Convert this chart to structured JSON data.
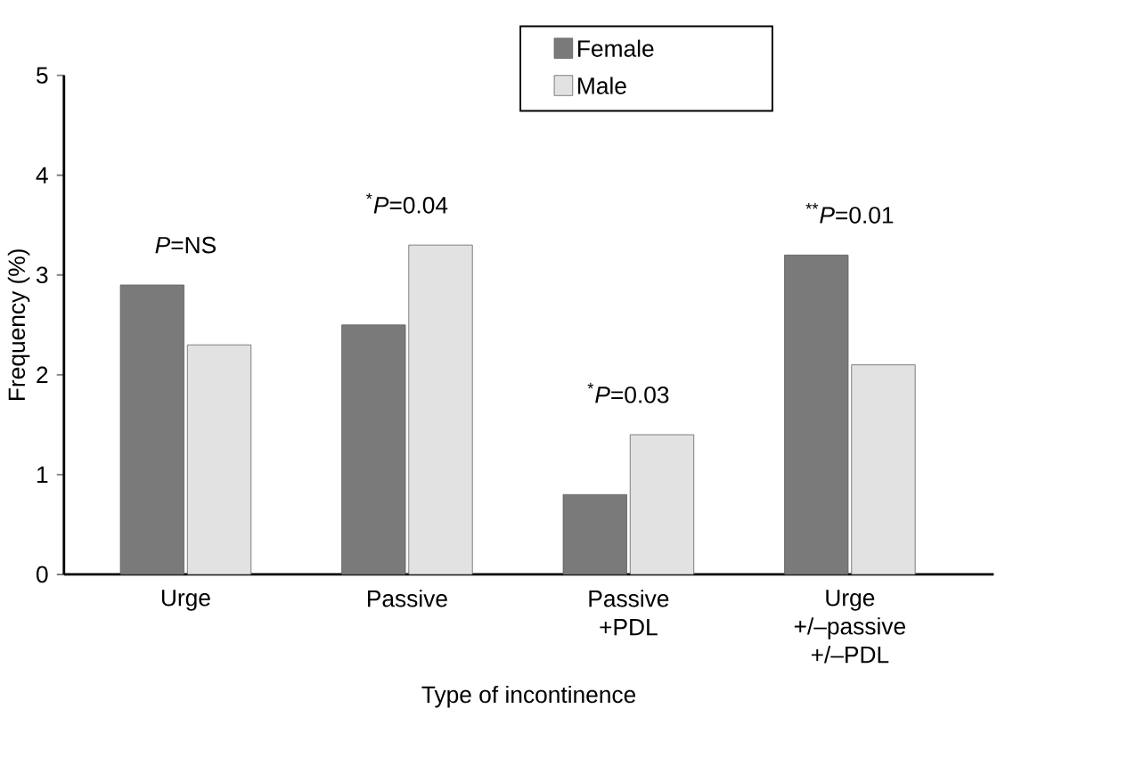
{
  "chart_data": {
    "type": "bar",
    "xlabel": "Type of incontinence",
    "ylabel": "Frequency (%)",
    "categories": [
      "Urge",
      "Passive",
      "Passive +PDL",
      "Urge +/–passive +/–PDL"
    ],
    "series": [
      {
        "name": "Female",
        "color": "#7a7a7a",
        "values": [
          2.9,
          2.5,
          0.8,
          3.2
        ]
      },
      {
        "name": "Male",
        "color": "#e2e2e2",
        "values": [
          2.3,
          3.3,
          1.4,
          2.1
        ]
      }
    ],
    "ylim": [
      0,
      5
    ],
    "yticks": [
      0,
      1,
      2,
      3,
      4,
      5
    ],
    "legend": "top right",
    "grid": false,
    "annotations": [
      "*P*=NS",
      "$^{*}$*P*=0.04",
      "$^{*}$*P*=0.03",
      "$^{**}$*P*=0.01"
    ]
  }
}
